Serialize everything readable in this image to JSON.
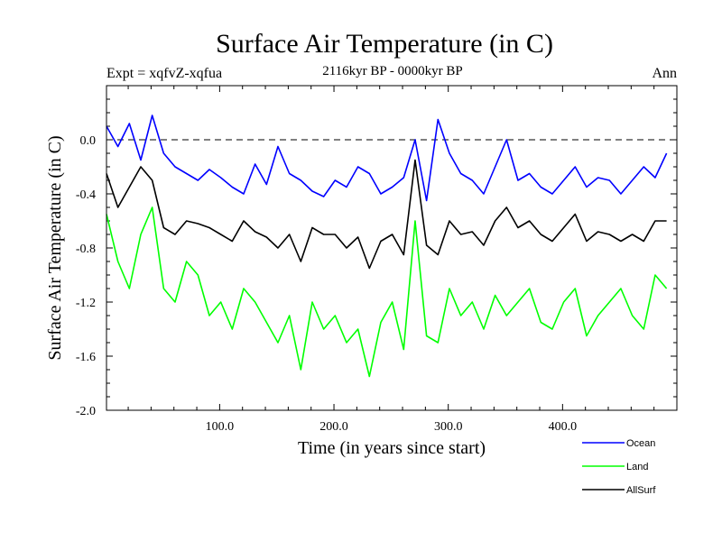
{
  "chart_data": {
    "type": "line",
    "title": "Surface Air Temperature (in C)",
    "subtitle": "2116kyr BP - 0000kyr BP",
    "expt_label": "Expt = xqfvZ-xqfua",
    "season_label": "Ann",
    "xlabel": "Time (in years since start)",
    "ylabel": "Surface Air Temperature (in C)",
    "xlim": [
      1,
      500
    ],
    "ylim": [
      -2.0,
      0.4
    ],
    "x_ticks": [
      100,
      200,
      300,
      400
    ],
    "x_tick_labels": [
      "100.0",
      "200.0",
      "300.0",
      "400.0"
    ],
    "y_ticks": [
      0.0,
      -0.4,
      -0.8,
      -1.2,
      -1.6,
      -2.0
    ],
    "y_tick_labels": [
      "0.0",
      "-0.4",
      "-0.8",
      "-1.2",
      "-1.6",
      "-2.0"
    ],
    "reference_line": 0.0,
    "x_step": 10,
    "series": [
      {
        "name": "Ocean",
        "color": "#0000ff",
        "values": [
          0.1,
          -0.05,
          0.12,
          -0.15,
          0.18,
          -0.1,
          -0.2,
          -0.25,
          -0.3,
          -0.22,
          -0.28,
          -0.35,
          -0.4,
          -0.18,
          -0.33,
          -0.05,
          -0.25,
          -0.3,
          -0.38,
          -0.42,
          -0.3,
          -0.35,
          -0.2,
          -0.25,
          -0.4,
          -0.35,
          -0.28,
          0.0,
          -0.45,
          0.15,
          -0.1,
          -0.25,
          -0.3,
          -0.4,
          -0.2,
          0.0,
          -0.3,
          -0.25,
          -0.35,
          -0.4,
          -0.3,
          -0.2,
          -0.35,
          -0.28,
          -0.3,
          -0.4,
          -0.3,
          -0.2,
          -0.28,
          -0.1
        ]
      },
      {
        "name": "Land",
        "color": "#00ff00",
        "values": [
          -0.55,
          -0.9,
          -1.1,
          -0.7,
          -0.5,
          -1.1,
          -1.2,
          -0.9,
          -1.0,
          -1.3,
          -1.2,
          -1.4,
          -1.1,
          -1.2,
          -1.35,
          -1.5,
          -1.3,
          -1.7,
          -1.2,
          -1.4,
          -1.3,
          -1.5,
          -1.4,
          -1.75,
          -1.35,
          -1.2,
          -1.55,
          -0.6,
          -1.45,
          -1.5,
          -1.1,
          -1.3,
          -1.2,
          -1.4,
          -1.15,
          -1.3,
          -1.2,
          -1.1,
          -1.35,
          -1.4,
          -1.2,
          -1.1,
          -1.45,
          -1.3,
          -1.2,
          -1.1,
          -1.3,
          -1.4,
          -1.0,
          -1.1
        ]
      },
      {
        "name": "AllSurf",
        "color": "#000000",
        "values": [
          -0.25,
          -0.5,
          -0.35,
          -0.2,
          -0.3,
          -0.65,
          -0.7,
          -0.6,
          -0.62,
          -0.65,
          -0.7,
          -0.75,
          -0.6,
          -0.68,
          -0.72,
          -0.8,
          -0.7,
          -0.9,
          -0.65,
          -0.7,
          -0.7,
          -0.8,
          -0.72,
          -0.95,
          -0.75,
          -0.7,
          -0.85,
          -0.15,
          -0.78,
          -0.85,
          -0.6,
          -0.7,
          -0.68,
          -0.78,
          -0.6,
          -0.5,
          -0.65,
          -0.6,
          -0.7,
          -0.75,
          -0.65,
          -0.55,
          -0.75,
          -0.68,
          -0.7,
          -0.75,
          -0.7,
          -0.75,
          -0.6,
          -0.6
        ]
      }
    ],
    "legend": {
      "placement": "bottom-right",
      "entries": [
        "Ocean",
        "Land",
        "AllSurf"
      ]
    }
  }
}
